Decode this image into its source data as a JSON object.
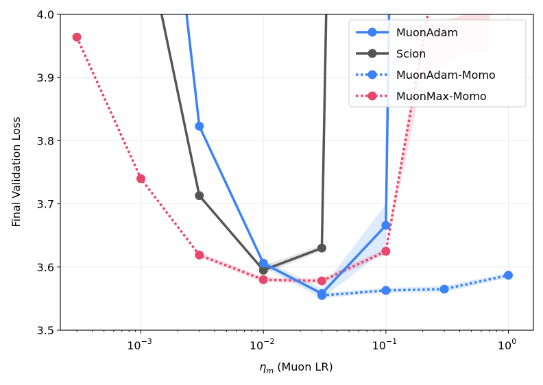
{
  "chart_data": {
    "type": "line",
    "title": "",
    "xlabel_symbol": "η",
    "xlabel_subscript": "m",
    "xlabel_text": " (Muon LR)",
    "ylabel": "Final Validation Loss",
    "xscale": "log",
    "xlim": [
      0.00022,
      1.6
    ],
    "ylim": [
      3.5,
      4.0
    ],
    "grid": true,
    "legend_position": "top-right",
    "x_ticks": [
      {
        "value": 0.001,
        "base": "10",
        "exp": "−3"
      },
      {
        "value": 0.01,
        "base": "10",
        "exp": "−2"
      },
      {
        "value": 0.1,
        "base": "10",
        "exp": "−1"
      },
      {
        "value": 1,
        "base": "10",
        "exp": "0"
      }
    ],
    "y_ticks": [
      {
        "value": 3.5,
        "label": "3.5"
      },
      {
        "value": 3.6,
        "label": "3.6"
      },
      {
        "value": 3.7,
        "label": "3.7"
      },
      {
        "value": 3.8,
        "label": "3.8"
      },
      {
        "value": 3.9,
        "label": "3.9"
      },
      {
        "value": 4.0,
        "label": "4.0"
      }
    ],
    "series": [
      {
        "name": "MuonAdam",
        "color": "#3b82f6",
        "style": "solid",
        "x": [
          0.003,
          0.01,
          0.03,
          0.1
        ],
        "y": [
          3.823,
          3.606,
          3.558,
          3.666
        ],
        "lead_in": [
          [
            0.0018,
            4.2
          ]
        ],
        "lead_out": [
          [
            0.11,
            4.2
          ]
        ],
        "band": {
          "x": [
            0.01,
            0.03,
            0.1
          ],
          "lower": [
            3.6,
            3.55,
            3.628
          ],
          "upper": [
            3.612,
            3.566,
            3.7
          ]
        }
      },
      {
        "name": "Scion",
        "color": "#555555",
        "style": "solid",
        "x": [
          0.003,
          0.01,
          0.03
        ],
        "y": [
          3.713,
          3.595,
          3.63
        ],
        "lead_in": [
          [
            0.0009,
            4.2
          ]
        ],
        "lead_out": [
          [
            0.034,
            4.2
          ]
        ],
        "band": {
          "x": [
            0.01,
            0.03
          ],
          "lower": [
            3.589,
            3.626
          ],
          "upper": [
            3.602,
            3.634
          ]
        }
      },
      {
        "name": "MuonAdam-Momo",
        "color": "#3b82f6",
        "style": "dotted",
        "x": [
          0.03,
          0.1,
          0.3,
          1
        ],
        "y": [
          3.555,
          3.563,
          3.565,
          3.587
        ],
        "lead_in": [],
        "lead_out": [],
        "band": {
          "x": [
            0.03,
            0.1,
            0.3,
            1
          ],
          "lower": [
            3.551,
            3.559,
            3.56,
            3.583
          ],
          "upper": [
            3.559,
            3.567,
            3.57,
            3.591
          ]
        }
      },
      {
        "name": "MuonMax-Momo",
        "color": "#e8466b",
        "style": "dotted",
        "x": [
          0.0003,
          0.001,
          0.003,
          0.01,
          0.03,
          0.1
        ],
        "y": [
          3.964,
          3.74,
          3.619,
          3.58,
          3.578,
          3.625
        ],
        "lead_in": [],
        "lead_out": [
          [
            0.22,
            4.0
          ]
        ],
        "band": {
          "x": [
            0.003,
            0.01,
            0.03,
            0.1,
            0.2,
            0.45,
            0.7
          ],
          "lower": [
            3.615,
            3.576,
            3.574,
            3.62,
            3.9,
            3.94,
            3.94
          ],
          "upper": [
            3.623,
            3.584,
            3.582,
            3.63,
            3.98,
            4.0,
            4.0
          ]
        }
      }
    ]
  }
}
